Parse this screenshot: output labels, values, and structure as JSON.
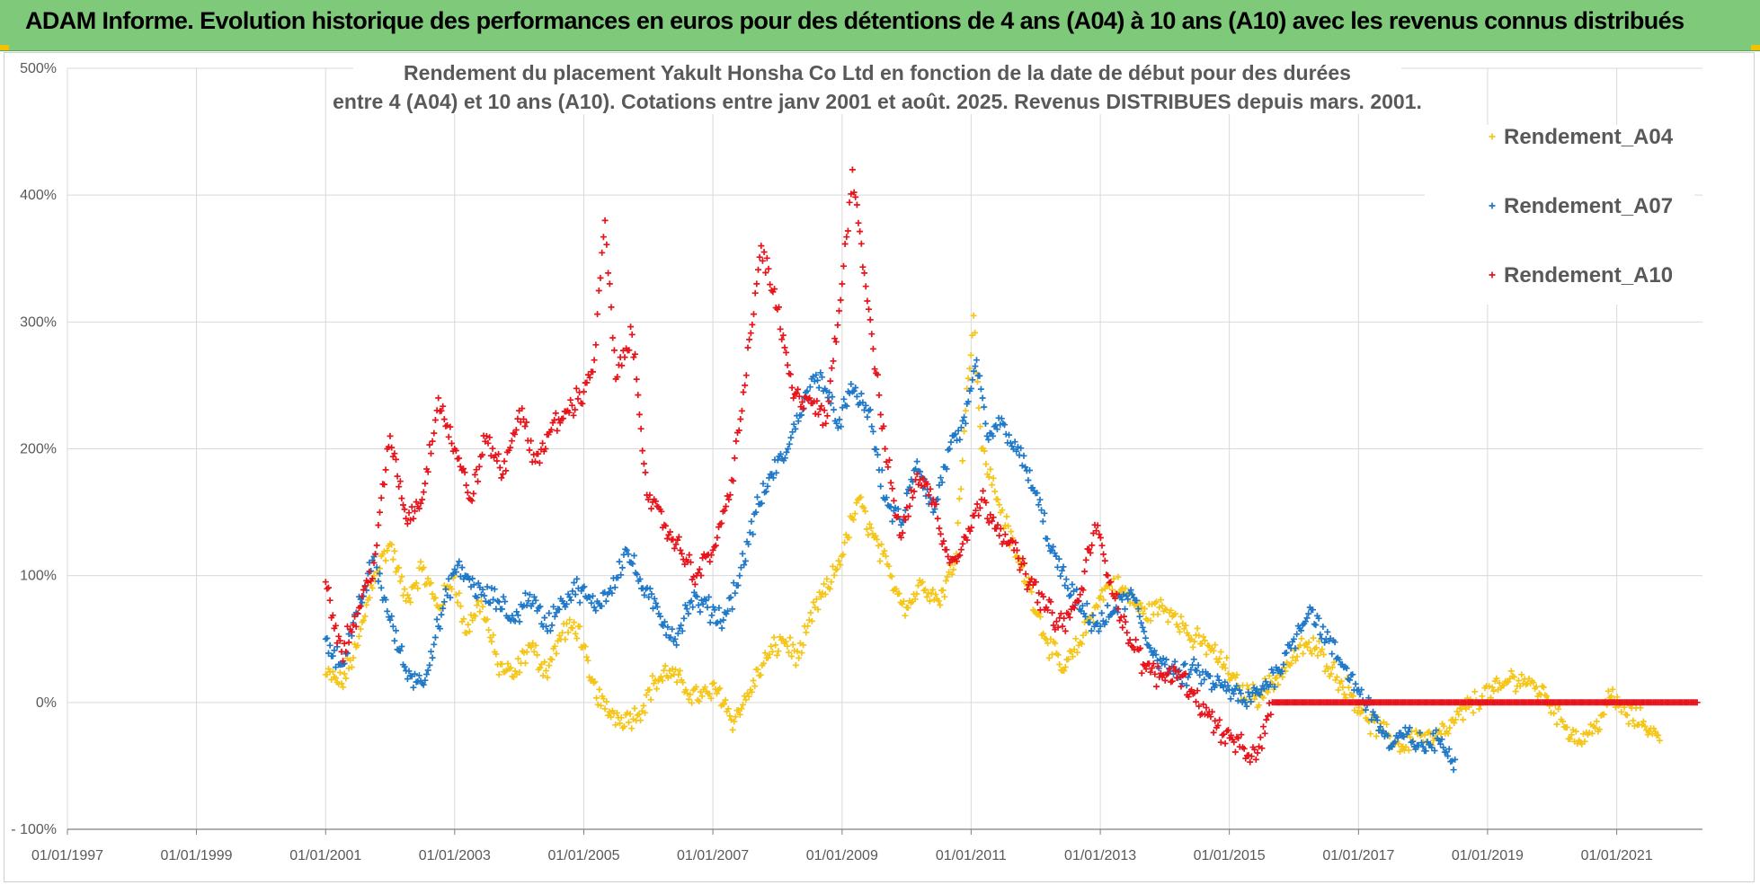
{
  "header": {
    "title": "ADAM Informe. Evolution historique des performances en euros pour des détentions de 4 ans (A04) à 10 ans (A10) avec les revenus connus distribués"
  },
  "chart_data": {
    "type": "scatter",
    "title_lines": [
      "Rendement du placement Yakult Honsha Co Ltd en fonction de la date de début pour des durées",
      "entre 4 (A04) et 10 ans (A10). Cotations entre janv 2001 et août. 2025. Revenus DISTRIBUES depuis mars. 2001."
    ],
    "xlabel": "",
    "ylabel": "",
    "xlim": [
      "1997-01-01",
      "2022-05-01"
    ],
    "ylim": [
      -100,
      500
    ],
    "y_ticks": [
      -100,
      0,
      100,
      200,
      300,
      400,
      500
    ],
    "y_tick_labels": [
      "- 100%",
      "0%",
      "100%",
      "200%",
      "300%",
      "400%",
      "500%"
    ],
    "x_ticks": [
      "1997-01-01",
      "1999-01-01",
      "2001-01-01",
      "2003-01-01",
      "2005-01-01",
      "2007-01-01",
      "2009-01-01",
      "2011-01-01",
      "2013-01-01",
      "2015-01-01",
      "2017-01-01",
      "2019-01-01",
      "2021-01-01"
    ],
    "x_tick_labels": [
      "01/01/1997",
      "01/01/1999",
      "01/01/2001",
      "01/01/2003",
      "01/01/2005",
      "01/01/2007",
      "01/01/2009",
      "01/01/2011",
      "01/01/2013",
      "01/01/2015",
      "01/01/2017",
      "01/01/2019",
      "01/01/2021"
    ],
    "grid": true,
    "legend_position": "top-right",
    "marker": "+",
    "series": [
      {
        "name": "Rendement_A04",
        "color": "#f5c518",
        "points": [
          [
            "2001-01-01",
            22
          ],
          [
            "2001-04-01",
            15
          ],
          [
            "2001-07-01",
            45
          ],
          [
            "2001-10-01",
            100
          ],
          [
            "2002-01-01",
            125
          ],
          [
            "2002-04-01",
            80
          ],
          [
            "2002-07-01",
            105
          ],
          [
            "2002-10-01",
            75
          ],
          [
            "2003-01-01",
            100
          ],
          [
            "2003-03-01",
            55
          ],
          [
            "2003-06-01",
            80
          ],
          [
            "2003-09-01",
            30
          ],
          [
            "2003-12-01",
            20
          ],
          [
            "2004-03-01",
            45
          ],
          [
            "2004-06-01",
            25
          ],
          [
            "2004-09-01",
            55
          ],
          [
            "2004-12-01",
            60
          ],
          [
            "2005-02-01",
            20
          ],
          [
            "2005-05-01",
            -5
          ],
          [
            "2005-08-01",
            -12
          ],
          [
            "2005-11-01",
            -10
          ],
          [
            "2006-02-01",
            15
          ],
          [
            "2006-05-01",
            25
          ],
          [
            "2006-08-01",
            10
          ],
          [
            "2006-11-01",
            5
          ],
          [
            "2007-02-01",
            10
          ],
          [
            "2007-05-01",
            -15
          ],
          [
            "2007-08-01",
            10
          ],
          [
            "2007-11-01",
            35
          ],
          [
            "2008-02-01",
            50
          ],
          [
            "2008-05-01",
            35
          ],
          [
            "2008-08-01",
            75
          ],
          [
            "2008-11-01",
            95
          ],
          [
            "2009-02-01",
            130
          ],
          [
            "2009-04-01",
            160
          ],
          [
            "2009-07-01",
            130
          ],
          [
            "2009-10-01",
            100
          ],
          [
            "2010-01-01",
            75
          ],
          [
            "2010-04-01",
            95
          ],
          [
            "2010-07-01",
            80
          ],
          [
            "2010-10-01",
            110
          ],
          [
            "2010-12-01",
            230
          ],
          [
            "2011-01-15",
            305
          ],
          [
            "2011-03-01",
            200
          ],
          [
            "2011-06-01",
            160
          ],
          [
            "2011-09-01",
            120
          ],
          [
            "2011-12-01",
            90
          ],
          [
            "2012-03-01",
            50
          ],
          [
            "2012-06-01",
            25
          ],
          [
            "2012-09-01",
            45
          ],
          [
            "2012-12-01",
            75
          ],
          [
            "2013-03-01",
            95
          ],
          [
            "2013-06-01",
            85
          ],
          [
            "2013-09-01",
            70
          ],
          [
            "2013-12-01",
            75
          ],
          [
            "2014-03-01",
            70
          ],
          [
            "2014-06-01",
            50
          ],
          [
            "2014-09-01",
            45
          ],
          [
            "2014-12-01",
            30
          ],
          [
            "2015-03-01",
            10
          ],
          [
            "2015-06-01",
            5
          ],
          [
            "2015-09-01",
            15
          ],
          [
            "2015-12-01",
            30
          ],
          [
            "2016-03-01",
            45
          ],
          [
            "2016-06-01",
            40
          ],
          [
            "2016-09-01",
            20
          ],
          [
            "2016-12-01",
            5
          ],
          [
            "2017-03-01",
            -15
          ],
          [
            "2017-06-01",
            -25
          ],
          [
            "2017-09-01",
            -35
          ],
          [
            "2017-12-01",
            -25
          ],
          [
            "2018-03-01",
            -30
          ],
          [
            "2018-06-01",
            -20
          ],
          [
            "2018-09-01",
            -5
          ],
          [
            "2018-12-01",
            5
          ],
          [
            "2019-03-01",
            10
          ],
          [
            "2019-06-01",
            20
          ],
          [
            "2019-09-01",
            15
          ],
          [
            "2019-12-01",
            5
          ],
          [
            "2020-03-01",
            -15
          ],
          [
            "2020-06-01",
            -30
          ],
          [
            "2020-09-01",
            -20
          ],
          [
            "2020-12-01",
            5
          ],
          [
            "2021-03-01",
            -10
          ],
          [
            "2021-06-01",
            -15
          ],
          [
            "2021-09-01",
            -30
          ]
        ]
      },
      {
        "name": "Rendement_A07",
        "color": "#1f78c8",
        "points": [
          [
            "2001-01-01",
            50
          ],
          [
            "2001-04-01",
            30
          ],
          [
            "2001-07-01",
            70
          ],
          [
            "2001-10-01",
            115
          ],
          [
            "2002-01-01",
            65
          ],
          [
            "2002-04-01",
            25
          ],
          [
            "2002-07-01",
            15
          ],
          [
            "2002-10-01",
            60
          ],
          [
            "2003-01-01",
            105
          ],
          [
            "2003-03-01",
            100
          ],
          [
            "2003-06-01",
            85
          ],
          [
            "2003-09-01",
            80
          ],
          [
            "2003-12-01",
            65
          ],
          [
            "2004-03-01",
            85
          ],
          [
            "2004-06-01",
            60
          ],
          [
            "2004-09-01",
            80
          ],
          [
            "2004-12-01",
            90
          ],
          [
            "2005-03-01",
            75
          ],
          [
            "2005-06-01",
            90
          ],
          [
            "2005-09-01",
            120
          ],
          [
            "2005-12-01",
            90
          ],
          [
            "2006-03-01",
            70
          ],
          [
            "2006-06-01",
            50
          ],
          [
            "2006-09-01",
            80
          ],
          [
            "2006-12-01",
            75
          ],
          [
            "2007-03-01",
            65
          ],
          [
            "2007-06-01",
            100
          ],
          [
            "2007-09-01",
            150
          ],
          [
            "2007-12-01",
            180
          ],
          [
            "2008-03-01",
            200
          ],
          [
            "2008-06-01",
            240
          ],
          [
            "2008-09-01",
            260
          ],
          [
            "2008-12-01",
            220
          ],
          [
            "2009-03-01",
            245
          ],
          [
            "2009-06-01",
            230
          ],
          [
            "2009-09-01",
            160
          ],
          [
            "2009-12-01",
            140
          ],
          [
            "2010-03-01",
            190
          ],
          [
            "2010-06-01",
            150
          ],
          [
            "2010-09-01",
            200
          ],
          [
            "2010-12-01",
            220
          ],
          [
            "2011-02-01",
            270
          ],
          [
            "2011-04-01",
            210
          ],
          [
            "2011-07-01",
            220
          ],
          [
            "2011-10-01",
            195
          ],
          [
            "2012-01-01",
            165
          ],
          [
            "2012-04-01",
            120
          ],
          [
            "2012-07-01",
            90
          ],
          [
            "2012-10-01",
            70
          ],
          [
            "2013-01-01",
            60
          ],
          [
            "2013-04-01",
            75
          ],
          [
            "2013-07-01",
            85
          ],
          [
            "2013-10-01",
            45
          ],
          [
            "2014-01-01",
            30
          ],
          [
            "2014-04-01",
            20
          ],
          [
            "2014-07-01",
            25
          ],
          [
            "2014-10-01",
            15
          ],
          [
            "2015-01-01",
            10
          ],
          [
            "2015-04-01",
            0
          ],
          [
            "2015-07-01",
            10
          ],
          [
            "2015-10-01",
            25
          ],
          [
            "2016-01-01",
            50
          ],
          [
            "2016-04-01",
            75
          ],
          [
            "2016-07-01",
            50
          ],
          [
            "2016-10-01",
            30
          ],
          [
            "2017-01-01",
            10
          ],
          [
            "2017-04-01",
            -10
          ],
          [
            "2017-07-01",
            -35
          ],
          [
            "2017-10-01",
            -25
          ],
          [
            "2018-01-01",
            -35
          ],
          [
            "2018-04-01",
            -30
          ],
          [
            "2018-07-01",
            -45
          ]
        ]
      },
      {
        "name": "Rendement_A10",
        "color": "#e8141c",
        "points": [
          [
            "2001-01-01",
            95
          ],
          [
            "2001-04-01",
            40
          ],
          [
            "2001-07-01",
            70
          ],
          [
            "2001-10-01",
            110
          ],
          [
            "2002-01-01",
            210
          ],
          [
            "2002-04-01",
            145
          ],
          [
            "2002-07-01",
            160
          ],
          [
            "2002-10-01",
            240
          ],
          [
            "2003-01-01",
            200
          ],
          [
            "2003-04-01",
            160
          ],
          [
            "2003-07-01",
            210
          ],
          [
            "2003-10-01",
            180
          ],
          [
            "2004-01-01",
            230
          ],
          [
            "2004-04-01",
            190
          ],
          [
            "2004-07-01",
            215
          ],
          [
            "2004-10-01",
            230
          ],
          [
            "2005-01-01",
            245
          ],
          [
            "2005-03-01",
            270
          ],
          [
            "2005-05-01",
            380
          ],
          [
            "2005-07-01",
            255
          ],
          [
            "2005-10-01",
            290
          ],
          [
            "2006-01-01",
            160
          ],
          [
            "2006-04-01",
            140
          ],
          [
            "2006-07-01",
            120
          ],
          [
            "2006-10-01",
            100
          ],
          [
            "2007-01-01",
            120
          ],
          [
            "2007-04-01",
            160
          ],
          [
            "2007-07-01",
            250
          ],
          [
            "2007-10-01",
            360
          ],
          [
            "2008-01-01",
            310
          ],
          [
            "2008-04-01",
            240
          ],
          [
            "2008-07-01",
            240
          ],
          [
            "2008-10-01",
            220
          ],
          [
            "2009-01-01",
            330
          ],
          [
            "2009-03-01",
            420
          ],
          [
            "2009-06-01",
            310
          ],
          [
            "2009-09-01",
            200
          ],
          [
            "2009-12-01",
            130
          ],
          [
            "2010-03-01",
            180
          ],
          [
            "2010-06-01",
            160
          ],
          [
            "2010-09-01",
            110
          ],
          [
            "2010-12-01",
            130
          ],
          [
            "2011-03-01",
            160
          ],
          [
            "2011-06-01",
            140
          ],
          [
            "2011-09-01",
            120
          ],
          [
            "2011-12-01",
            95
          ],
          [
            "2012-03-01",
            75
          ],
          [
            "2012-06-01",
            60
          ],
          [
            "2012-09-01",
            80
          ],
          [
            "2012-12-01",
            140
          ],
          [
            "2013-03-01",
            95
          ],
          [
            "2013-06-01",
            55
          ],
          [
            "2013-09-01",
            30
          ],
          [
            "2013-12-01",
            20
          ],
          [
            "2014-03-01",
            25
          ],
          [
            "2014-06-01",
            10
          ],
          [
            "2014-09-01",
            -10
          ],
          [
            "2014-12-01",
            -25
          ],
          [
            "2015-03-01",
            -35
          ],
          [
            "2015-06-01",
            -45
          ],
          [
            "2015-09-01",
            0
          ],
          [
            "2016-06-01",
            0
          ],
          [
            "2017-06-01",
            0
          ],
          [
            "2018-06-01",
            0
          ],
          [
            "2019-06-01",
            0
          ],
          [
            "2020-06-01",
            0
          ],
          [
            "2021-06-01",
            0
          ],
          [
            "2022-04-01",
            0
          ]
        ]
      }
    ]
  }
}
